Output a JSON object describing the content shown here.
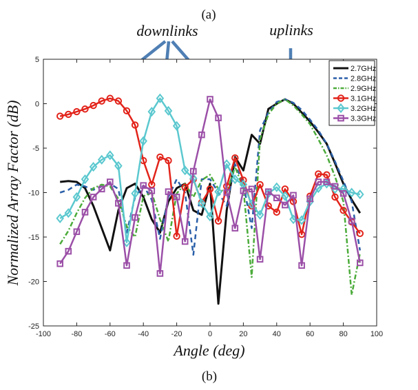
{
  "caption_top": "(a)",
  "caption_bottom": "(b)",
  "annotations": {
    "downlinks": "downlinks",
    "uplinks": "uplinks"
  },
  "arrow_color": "#4f7fb4",
  "chart_data": {
    "type": "line",
    "xlabel": "Angle (deg)",
    "ylabel": "Normalized Array Factor (dB)",
    "xlim": [
      -100,
      100
    ],
    "ylim": [
      -25,
      5
    ],
    "xticks": [
      -100,
      -80,
      -60,
      -40,
      -20,
      0,
      20,
      40,
      60,
      80,
      100
    ],
    "yticks": [
      5,
      0,
      -5,
      -10,
      -15,
      -20,
      -25
    ],
    "grid": false,
    "legend_position": "top-right",
    "x": [
      -90,
      -85,
      -80,
      -75,
      -70,
      -65,
      -60,
      -55,
      -50,
      -45,
      -40,
      -35,
      -30,
      -25,
      -20,
      -15,
      -10,
      -5,
      0,
      5,
      10,
      15,
      20,
      25,
      30,
      35,
      40,
      45,
      50,
      55,
      60,
      65,
      70,
      75,
      80,
      85,
      90
    ],
    "series": [
      {
        "name": "2.7GHz",
        "color": "#111111",
        "dash": "",
        "width": 3,
        "marker": "none",
        "values": [
          -8.8,
          -8.7,
          -8.8,
          -9.5,
          -11.5,
          -14,
          -16.5,
          -12,
          -9.5,
          -9.0,
          -10.5,
          -13,
          -14.5,
          -11,
          -9.5,
          -9.0,
          -12,
          -12.5,
          -9,
          -22.5,
          -12,
          -6,
          -7.5,
          -3.5,
          -4.5,
          -0.6,
          0,
          0.5,
          0,
          -1,
          -2,
          -3.2,
          -4.5,
          -6.7,
          -9,
          -10.8,
          -12.3
        ]
      },
      {
        "name": "2.8GHz",
        "color": "#2a5fa8",
        "dash": "7,5",
        "width": 2.5,
        "marker": "none",
        "values": [
          -10,
          -9.7,
          -9.1,
          -9.3,
          -9.7,
          -9.3,
          -9.0,
          -9.6,
          -14.5,
          -10.5,
          -9.2,
          -10.8,
          -15.2,
          -10.5,
          -8.5,
          -10.0,
          -17,
          -8.5,
          -8.5,
          -10,
          -11.5,
          -6.8,
          -9,
          -14,
          -3,
          -1,
          0.2,
          0.5,
          0.1,
          -0.7,
          -1.8,
          -3,
          -4.5,
          -6.5,
          -8.7,
          -11,
          -16.5
        ]
      },
      {
        "name": "2.9GHz",
        "color": "#4bab3a",
        "dash": "7,3,2,3",
        "width": 2.5,
        "marker": "none",
        "values": [
          -15.8,
          -14.3,
          -12.3,
          -10.6,
          -9.5,
          -9.1,
          -9.3,
          -10.7,
          -13.8,
          -15.0,
          -10.4,
          -10.0,
          -13,
          -15.5,
          -10.1,
          -9.0,
          -10.5,
          -8.6,
          -8,
          -9.6,
          -10,
          -7.1,
          -9.5,
          -19.5,
          -4,
          -1.2,
          0,
          0.5,
          -0.2,
          -1.2,
          -2.3,
          -4,
          -5.8,
          -8.2,
          -11,
          -21.5,
          -16.8
        ]
      },
      {
        "name": "3.1GHz",
        "color": "#e2231a",
        "dash": "",
        "width": 2.5,
        "marker": "circle",
        "values": [
          -1.4,
          -1.2,
          -0.9,
          -0.6,
          -0.2,
          0.3,
          0.6,
          0.3,
          -0.8,
          -2.4,
          -6.4,
          -9.1,
          -6.0,
          -6.4,
          -14.9,
          -9.4,
          -8.5,
          -11.1,
          -9.6,
          -13.2,
          -9.3,
          -6.1,
          -8.6,
          -11.5,
          -9.1,
          -11.5,
          -12.2,
          -9.6,
          -11.0,
          -14.7,
          -10.4,
          -7.9,
          -8.0,
          -10.5,
          -12.0,
          -13.3,
          -14.6
        ]
      },
      {
        "name": "3.2GHz",
        "color": "#5bc8cf",
        "dash": "",
        "width": 2.5,
        "marker": "diamond",
        "values": [
          -12.9,
          -12.3,
          -10.5,
          -8.5,
          -7.1,
          -6.3,
          -5.8,
          -7.0,
          -15.6,
          -10.1,
          -4.2,
          -0.9,
          0.6,
          -0.8,
          -2.5,
          -7.5,
          -8.4,
          -11.2,
          -12.7,
          -9.9,
          -6.8,
          -8.5,
          -9.1,
          -11.3,
          -12.5,
          -10.1,
          -9.4,
          -10.4,
          -13.0,
          -13.1,
          -11.0,
          -9.5,
          -9.0,
          -9.6,
          -9.6,
          -10.0,
          -10.2
        ]
      },
      {
        "name": "3.3GHz",
        "color": "#9b4fa7",
        "dash": "",
        "width": 2.5,
        "marker": "square",
        "values": [
          -18,
          -16.6,
          -14.4,
          -12.2,
          -10.5,
          -9.6,
          -8.8,
          -11.2,
          -18.2,
          -12.8,
          -9.2,
          -9.8,
          -19.1,
          -9.9,
          -10.5,
          -15.5,
          -7.6,
          -3.5,
          0.5,
          -1.6,
          -10.0,
          -14.0,
          -9.8,
          -9.6,
          -17.5,
          -9.9,
          -10.6,
          -11.4,
          -10.3,
          -18.2,
          -10.7,
          -8.8,
          -8.8,
          -9.3,
          -10.1,
          -13.2,
          -17.9
        ]
      }
    ]
  }
}
